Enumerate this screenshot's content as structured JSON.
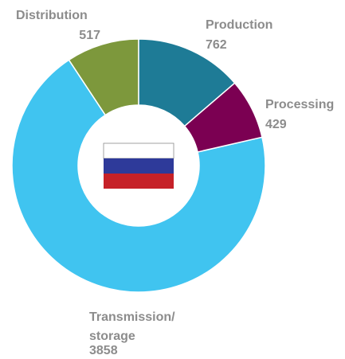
{
  "chart_data": {
    "type": "donut",
    "categories": [
      "Production",
      "Processing",
      "Transmission/storage",
      "Distribution"
    ],
    "values": [
      762,
      429,
      3858,
      517
    ],
    "colors": [
      "#1e7b96",
      "#7b0052",
      "#40c4f0",
      "#7d983c"
    ]
  }
}
